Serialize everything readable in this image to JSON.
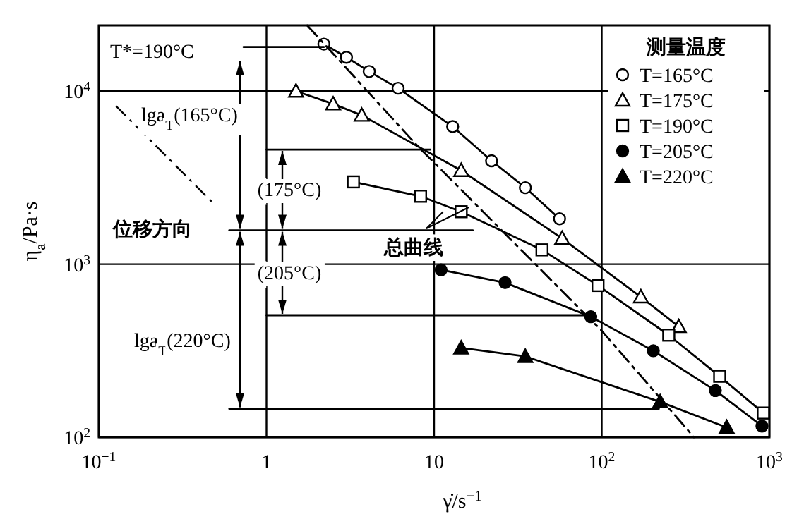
{
  "chart_data": {
    "type": "line",
    "xlabel": "γ̇/s$^{−1}$",
    "ylabel": "η$_{a}$/Pa·s",
    "legend_title": "测量温度",
    "log": "xy",
    "xlim": [
      0.1,
      1000
    ],
    "ylim": [
      100,
      24000
    ],
    "xticks": [
      {
        "value": 0.1,
        "label": "10$^{−1}$"
      },
      {
        "value": 1,
        "label": "1"
      },
      {
        "value": 10,
        "label": "10"
      },
      {
        "value": 100,
        "label": "10$^{2}$"
      },
      {
        "value": 1000,
        "label": "10$^{3}$"
      }
    ],
    "yticks": [
      {
        "value": 100,
        "label": "10$^{2}$"
      },
      {
        "value": 1000,
        "label": "10$^{3}$"
      },
      {
        "value": 10000,
        "label": "10$^{4}$"
      }
    ],
    "grid": true,
    "legend": "top right",
    "series": [
      {
        "name": "T=165°C",
        "color": "#000000",
        "marker": "circle-open",
        "x": [
          2.2,
          3.0,
          4.1,
          6.1,
          12.9,
          22,
          35,
          56
        ],
        "values": [
          18700,
          15700,
          13000,
          10400,
          6240,
          3960,
          2770,
          1830
        ]
      },
      {
        "name": "T=175°C",
        "color": "#000000",
        "marker": "triangle-open",
        "x": [
          1.5,
          2.5,
          3.7,
          14.5,
          58,
          171,
          288
        ],
        "values": [
          10000,
          8440,
          7260,
          3480,
          1410,
          647,
          436
        ]
      },
      {
        "name": "T=190°C",
        "color": "#000000",
        "marker": "square-open",
        "x": [
          3.3,
          8.3,
          14.5,
          44,
          95,
          251,
          505,
          920
        ],
        "values": [
          2990,
          2470,
          2010,
          1210,
          753,
          389,
          225,
          138
        ]
      },
      {
        "name": "T=205°C",
        "color": "#000000",
        "marker": "circle",
        "x": [
          11,
          26.5,
          86,
          203,
          476,
          903
        ],
        "values": [
          927,
          782,
          497,
          316,
          186,
          116
        ]
      },
      {
        "name": "T=220°C",
        "color": "#000000",
        "marker": "triangle",
        "x": [
          14.5,
          35,
          223,
          556
        ],
        "values": [
          328,
          293,
          160,
          114
        ]
      },
      {
        "color": "#000000",
        "marker": "none",
        "line_style": "dashdot",
        "x": [
          1.75,
          8,
          100,
          355
        ],
        "values": [
          24000,
          4800,
          412,
          100
        ]
      },
      {
        "color": "#000000",
        "marker": "none",
        "x": [
          0.73,
          2.2
        ],
        "values": [
          18000,
          18000
        ]
      },
      {
        "color": "#000000",
        "marker": "none",
        "x": [
          1.0,
          9.5
        ],
        "values": [
          4600,
          4600
        ]
      },
      {
        "color": "#000000",
        "marker": "none",
        "x": [
          0.6,
          17
        ],
        "values": [
          1570,
          1570
        ]
      },
      {
        "color": "#000000",
        "marker": "none",
        "x": [
          1.0,
          85
        ],
        "values": [
          507,
          507
        ]
      },
      {
        "color": "#000000",
        "marker": "none",
        "x": [
          0.6,
          219
        ],
        "values": [
          146,
          146
        ]
      }
    ],
    "annotations": [
      "T*=190°C",
      "lga$_{T}$(165°C)",
      "(175°C)",
      "(205°C)",
      "lga$_{T}$(220°C)",
      "位移方向",
      "总曲线"
    ]
  }
}
